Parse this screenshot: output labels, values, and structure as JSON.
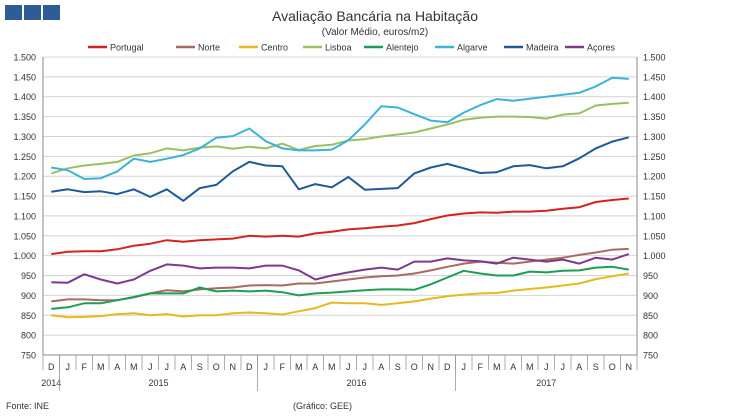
{
  "header": {
    "title": "Avaliação Bancária na Habitação",
    "subtitle": "(Valor Médio, euros/m2)",
    "logo_icon": "ine-logo-squares"
  },
  "footer": {
    "source": "Fonte: INE",
    "credit": "(Gráfico: GEE)"
  },
  "chart_data": {
    "type": "line",
    "title": "Avaliação Bancária na Habitação",
    "subtitle": "(Valor Médio, euros/m2)",
    "ylim": [
      750,
      1500
    ],
    "yticks": [
      "750",
      "800",
      "850",
      "900",
      "950",
      "1.000",
      "1.050",
      "1.100",
      "1.150",
      "1.200",
      "1.250",
      "1.300",
      "1.350",
      "1.400",
      "1.450",
      "1.500"
    ],
    "grid": true,
    "legend_position": "top",
    "categories": [
      "D",
      "J",
      "F",
      "M",
      "A",
      "M",
      "J",
      "J",
      "A",
      "S",
      "O",
      "N",
      "D",
      "J",
      "F",
      "M",
      "A",
      "M",
      "J",
      "J",
      "A",
      "S",
      "O",
      "N",
      "D",
      "J",
      "F",
      "M",
      "A",
      "M",
      "J",
      "J",
      "A",
      "S",
      "O",
      "N"
    ],
    "year_labels": [
      {
        "label": "2014",
        "start": 0,
        "end": 0
      },
      {
        "label": "2015",
        "start": 1,
        "end": 12
      },
      {
        "label": "2016",
        "start": 13,
        "end": 24
      },
      {
        "label": "2017",
        "start": 25,
        "end": 35
      }
    ],
    "series": [
      {
        "name": "Portugal",
        "color": "#d4231e",
        "values": [
          1004,
          1010,
          1011,
          1011,
          1016,
          1025,
          1030,
          1039,
          1035,
          1039,
          1041,
          1043,
          1050,
          1048,
          1050,
          1048,
          1056,
          1060,
          1066,
          1069,
          1073,
          1076,
          1082,
          1092,
          1101,
          1106,
          1109,
          1108,
          1111,
          1111,
          1113,
          1118,
          1122,
          1135,
          1140,
          1144
        ]
      },
      {
        "name": "Norte",
        "color": "#a86b5e",
        "values": [
          885,
          890,
          890,
          888,
          888,
          895,
          905,
          913,
          910,
          915,
          918,
          920,
          925,
          926,
          925,
          930,
          930,
          935,
          940,
          945,
          948,
          950,
          955,
          963,
          972,
          980,
          985,
          982,
          980,
          985,
          990,
          995,
          1002,
          1008,
          1015,
          1017
        ]
      },
      {
        "name": "Centro",
        "color": "#e8b820",
        "values": [
          850,
          845,
          846,
          848,
          853,
          855,
          850,
          853,
          847,
          850,
          850,
          855,
          857,
          855,
          852,
          860,
          868,
          882,
          880,
          880,
          876,
          880,
          885,
          892,
          898,
          902,
          905,
          906,
          912,
          916,
          920,
          925,
          930,
          941,
          948,
          955
        ]
      },
      {
        "name": "Lisboa",
        "color": "#99c060",
        "values": [
          1207,
          1220,
          1227,
          1231,
          1236,
          1252,
          1258,
          1270,
          1265,
          1272,
          1275,
          1269,
          1274,
          1270,
          1282,
          1266,
          1276,
          1279,
          1290,
          1293,
          1300,
          1305,
          1310,
          1320,
          1330,
          1342,
          1347,
          1350,
          1350,
          1349,
          1345,
          1355,
          1358,
          1378,
          1382,
          1385
        ]
      },
      {
        "name": "Alentejo",
        "color": "#1e9e55",
        "values": [
          866,
          870,
          880,
          880,
          888,
          896,
          905,
          905,
          905,
          920,
          910,
          912,
          910,
          912,
          908,
          900,
          905,
          907,
          910,
          913,
          915,
          915,
          914,
          928,
          945,
          962,
          955,
          950,
          950,
          960,
          958,
          962,
          963,
          970,
          972,
          965
        ]
      },
      {
        "name": "Algarve",
        "color": "#3bb2d8",
        "values": [
          1222,
          1215,
          1193,
          1195,
          1212,
          1244,
          1236,
          1244,
          1253,
          1270,
          1297,
          1301,
          1320,
          1288,
          1270,
          1265,
          1265,
          1267,
          1290,
          1330,
          1376,
          1373,
          1356,
          1340,
          1336,
          1360,
          1379,
          1394,
          1390,
          1395,
          1400,
          1405,
          1410,
          1426,
          1448,
          1445
        ]
      },
      {
        "name": "Madeira",
        "color": "#1e5a96",
        "values": [
          1161,
          1167,
          1160,
          1162,
          1155,
          1167,
          1148,
          1167,
          1138,
          1170,
          1178,
          1212,
          1236,
          1227,
          1225,
          1167,
          1180,
          1172,
          1198,
          1166,
          1168,
          1170,
          1207,
          1222,
          1231,
          1220,
          1208,
          1210,
          1225,
          1228,
          1220,
          1225,
          1245,
          1270,
          1287,
          1298
        ]
      },
      {
        "name": "Açores",
        "color": "#7b3a8e",
        "values": [
          933,
          932,
          953,
          940,
          930,
          940,
          962,
          978,
          975,
          968,
          970,
          970,
          968,
          975,
          975,
          963,
          940,
          950,
          958,
          965,
          970,
          965,
          985,
          985,
          993,
          988,
          986,
          980,
          995,
          990,
          985,
          990,
          980,
          995,
          990,
          1004
        ]
      }
    ]
  }
}
